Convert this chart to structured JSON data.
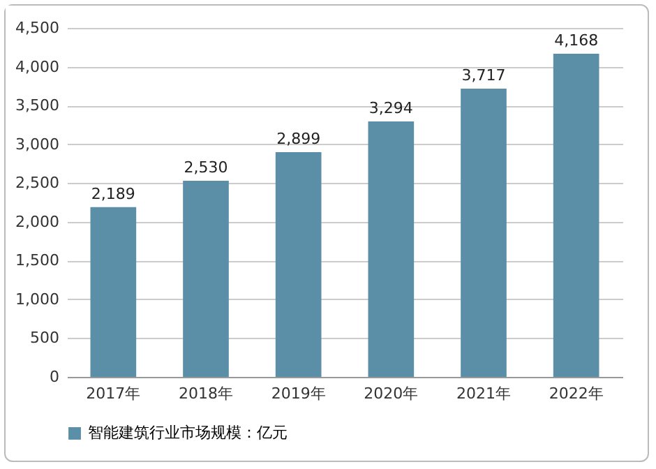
{
  "chart_data": {
    "type": "bar",
    "categories": [
      "2017年",
      "2018年",
      "2019年",
      "2020年",
      "2021年",
      "2022年"
    ],
    "series": [
      {
        "name": "智能建筑行业市场规模：亿元",
        "color": "#5b8fa8",
        "values": [
          2189,
          2530,
          2899,
          3294,
          3717,
          4168
        ]
      }
    ],
    "value_labels": [
      "2,189",
      "2,530",
      "2,899",
      "3,294",
      "3,717",
      "4,168"
    ],
    "ylim": [
      0,
      4500
    ],
    "yticks": [
      {
        "value": 0,
        "label": "0"
      },
      {
        "value": 500,
        "label": "500"
      },
      {
        "value": 1000,
        "label": "1,000"
      },
      {
        "value": 1500,
        "label": "1,500"
      },
      {
        "value": 2000,
        "label": "2,000"
      },
      {
        "value": 2500,
        "label": "2,500"
      },
      {
        "value": 3000,
        "label": "3,000"
      },
      {
        "value": 3500,
        "label": "3,500"
      },
      {
        "value": 4000,
        "label": "4,000"
      },
      {
        "value": 4500,
        "label": "4,500"
      }
    ],
    "grid": "y",
    "legend": "bottom"
  }
}
